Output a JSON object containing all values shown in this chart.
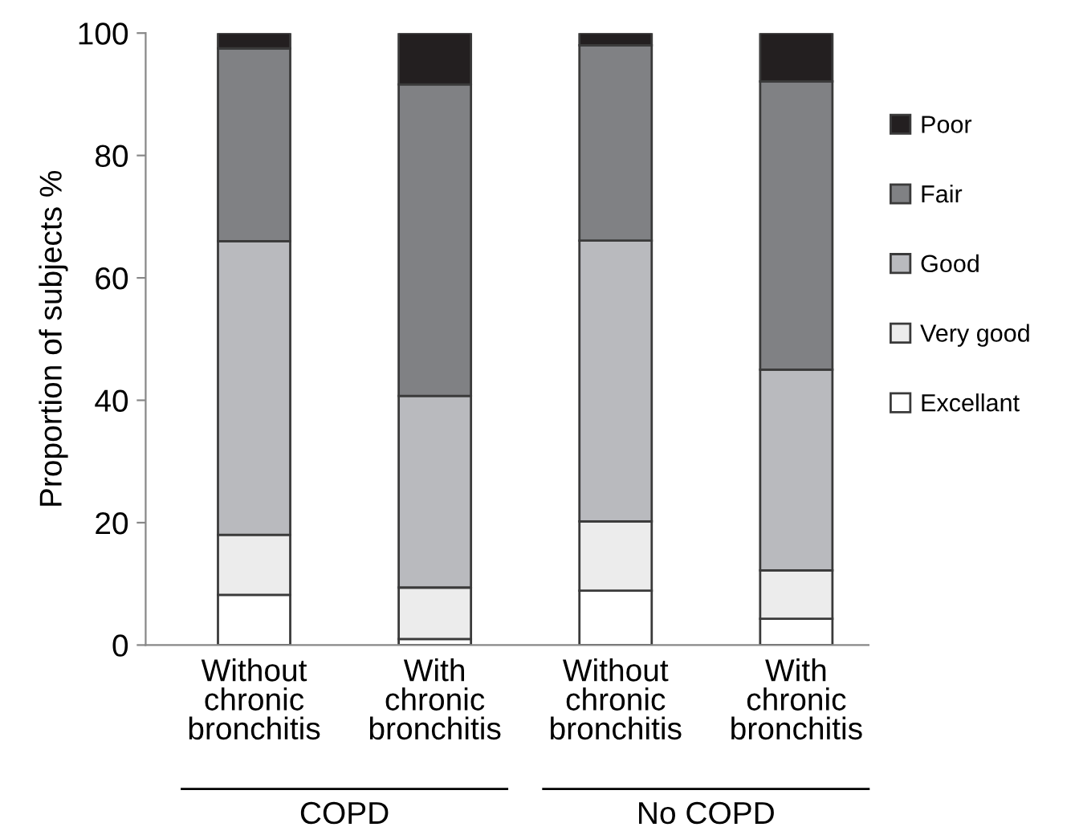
{
  "chart_data": {
    "type": "bar",
    "stacked": true,
    "ylabel": "Proportion of subjects %",
    "categories": [
      "Without\nchronic\nbronchitis",
      "With\nchronic\nbronchitis",
      "Without\nchronic\nbronchitis",
      "With\nchronic\nbronchitis"
    ],
    "series": [
      {
        "name": "Excellant",
        "color": "#ffffff",
        "values": [
          8.2,
          1.0,
          8.9,
          4.3
        ]
      },
      {
        "name": "Very good",
        "color": "#ececec",
        "values": [
          9.8,
          8.4,
          11.3,
          7.9
        ]
      },
      {
        "name": "Good",
        "color": "#b9babe",
        "values": [
          48,
          31.3,
          45.9,
          32.8
        ]
      },
      {
        "name": "Fair",
        "color": "#808184",
        "values": [
          31.5,
          50.9,
          31.9,
          47.1
        ]
      },
      {
        "name": "Poor",
        "color": "#231f20",
        "values": [
          2.5,
          8.4,
          2.0,
          7.9
        ]
      }
    ],
    "ylim": [
      0,
      100
    ],
    "yticks": [
      0,
      20,
      40,
      60,
      80,
      100
    ],
    "grid": false,
    "legend": "right",
    "annotations": [
      "COPD",
      "No COPD"
    ]
  }
}
